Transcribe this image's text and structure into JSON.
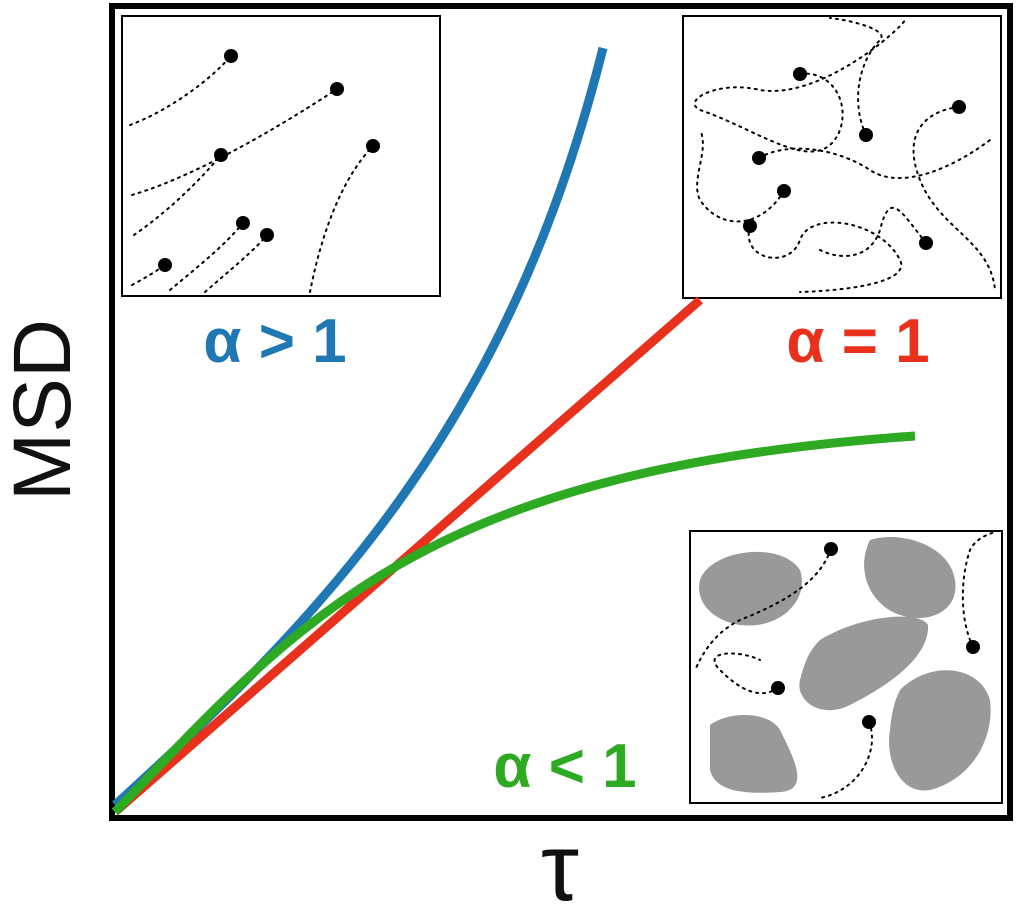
{
  "axes": {
    "y_label": "MSD",
    "x_label": "τ"
  },
  "curves": [
    {
      "label": "α > 1"
    },
    {
      "label": "α = 1"
    },
    {
      "label": "α < 1"
    }
  ]
}
